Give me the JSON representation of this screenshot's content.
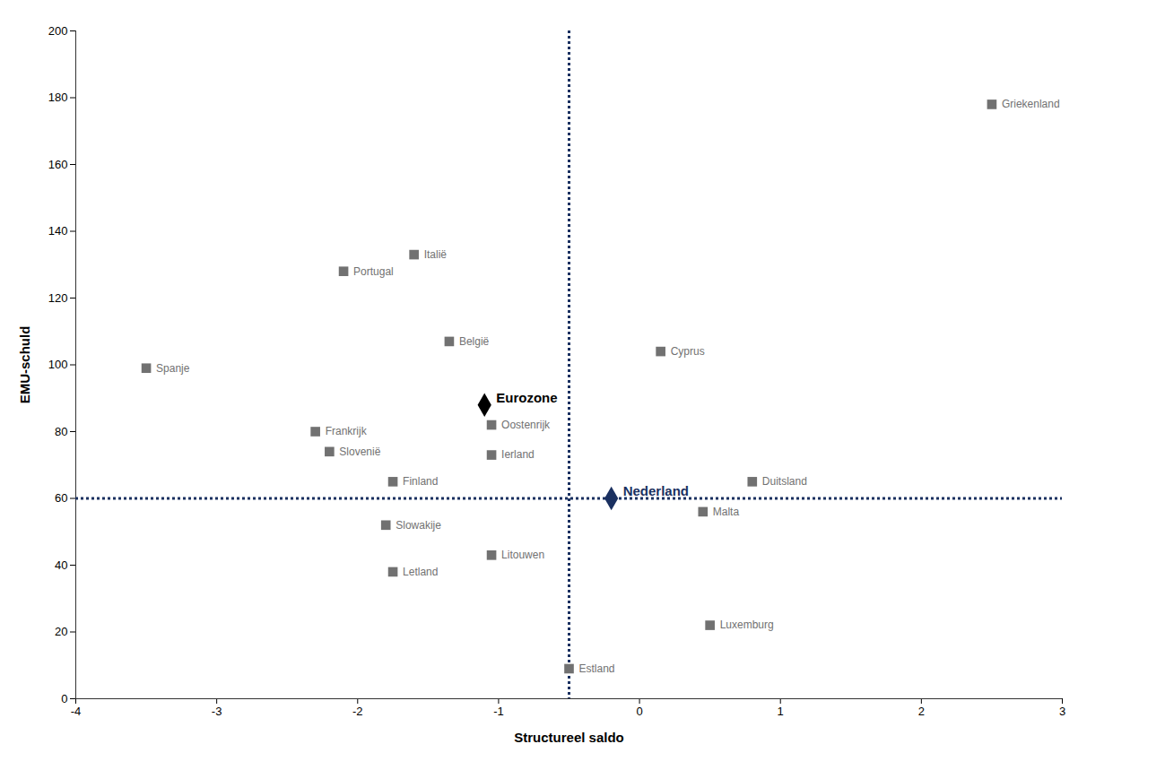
{
  "chart_data": {
    "type": "scatter",
    "xlabel": "Structureel saldo",
    "ylabel": "EMU-schuld",
    "xlim": [
      -4,
      3
    ],
    "ylim": [
      0,
      200
    ],
    "xticks": [
      -4,
      -3,
      -2,
      -1,
      0,
      1,
      2,
      3
    ],
    "yticks": [
      0,
      20,
      40,
      60,
      80,
      100,
      120,
      140,
      160,
      180,
      200
    ],
    "grid": false,
    "color": "#717171",
    "marker": "square",
    "points": [
      {
        "label": "Griekenland",
        "x": 2.5,
        "y": 178
      },
      {
        "label": "Cyprus",
        "x": 0.15,
        "y": 104
      },
      {
        "label": "Italië",
        "x": -1.6,
        "y": 133
      },
      {
        "label": "Portugal",
        "x": -2.1,
        "y": 128
      },
      {
        "label": "België",
        "x": -1.35,
        "y": 107
      },
      {
        "label": "Spanje",
        "x": -3.5,
        "y": 99
      },
      {
        "label": "Frankrijk",
        "x": -2.3,
        "y": 80
      },
      {
        "label": "Slovenië",
        "x": -2.2,
        "y": 74
      },
      {
        "label": "Finland",
        "x": -1.75,
        "y": 65
      },
      {
        "label": "Oostenrijk",
        "x": -1.05,
        "y": 82
      },
      {
        "label": "Ierland",
        "x": -1.05,
        "y": 73
      },
      {
        "label": "Duitsland",
        "x": 0.8,
        "y": 65
      },
      {
        "label": "Slowakije",
        "x": -1.8,
        "y": 52
      },
      {
        "label": "Litouwen",
        "x": -1.05,
        "y": 43
      },
      {
        "label": "Letland",
        "x": -1.75,
        "y": 38
      },
      {
        "label": "Malta",
        "x": 0.45,
        "y": 56
      },
      {
        "label": "Luxemburg",
        "x": 0.5,
        "y": 22
      },
      {
        "label": "Estland",
        "x": -0.5,
        "y": 9
      }
    ],
    "highlights": [
      {
        "label": "Eurozone",
        "x": -1.1,
        "y": 88,
        "color": "#000000",
        "marker": "diamond"
      },
      {
        "label": "Nederland",
        "x": -0.2,
        "y": 60,
        "color": "#1a3060",
        "marker": "diamond"
      }
    ],
    "reference_lines": [
      {
        "axis": "x",
        "value": -0.5,
        "color": "#1a3060",
        "line_style": "dotted"
      },
      {
        "axis": "y",
        "value": 60,
        "color": "#1a3060",
        "line_style": "dotted"
      }
    ]
  }
}
